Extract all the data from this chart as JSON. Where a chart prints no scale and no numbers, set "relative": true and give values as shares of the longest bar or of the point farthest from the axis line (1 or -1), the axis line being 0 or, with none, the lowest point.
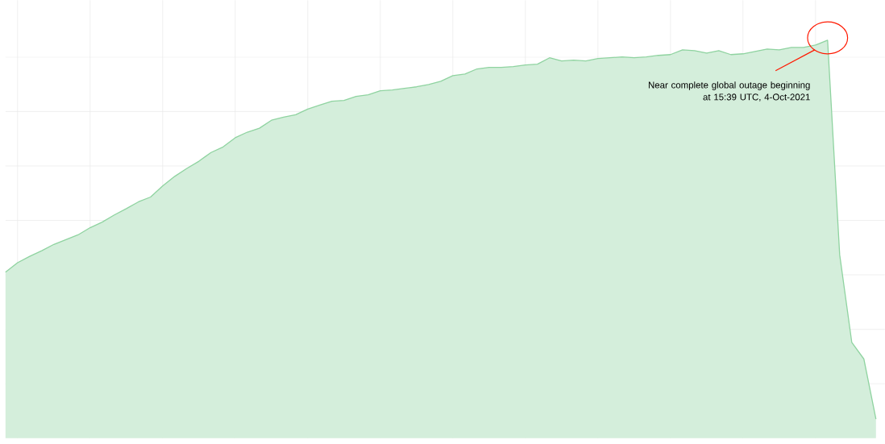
{
  "chart_data": {
    "type": "area",
    "relative": true,
    "grid": true,
    "categories": [
      null,
      null,
      null,
      null,
      null,
      null,
      null,
      null,
      null,
      null,
      null,
      null,
      null,
      null,
      null,
      null,
      null,
      null,
      null,
      null,
      null,
      null,
      null,
      null,
      null,
      null,
      null,
      null,
      null,
      null,
      null,
      null,
      null,
      null,
      null,
      null,
      null,
      null,
      null,
      null,
      null,
      null,
      null,
      null,
      null,
      null,
      null,
      null,
      null,
      null,
      null,
      null,
      null,
      null,
      null,
      null,
      null,
      null,
      null,
      null,
      null,
      null,
      null,
      null,
      null,
      null,
      null,
      null,
      null,
      null,
      null,
      null,
      null
    ],
    "series": [
      {
        "color": "#8fd3a0",
        "values": [
          0.417,
          0.441,
          0.457,
          0.471,
          0.487,
          0.499,
          0.511,
          0.529,
          0.543,
          0.561,
          0.577,
          0.594,
          0.606,
          0.634,
          0.658,
          0.678,
          0.696,
          0.718,
          0.732,
          0.755,
          0.769,
          0.779,
          0.799,
          0.807,
          0.813,
          0.827,
          0.837,
          0.847,
          0.849,
          0.859,
          0.863,
          0.873,
          0.875,
          0.879,
          0.883,
          0.889,
          0.897,
          0.911,
          0.915,
          0.928,
          0.932,
          0.932,
          0.934,
          0.938,
          0.94,
          0.956,
          0.948,
          0.95,
          0.948,
          0.954,
          0.956,
          0.958,
          0.956,
          0.958,
          0.962,
          0.964,
          0.976,
          0.974,
          0.968,
          0.974,
          0.964,
          0.966,
          0.972,
          0.978,
          0.976,
          0.982,
          0.982,
          0.988,
          1,
          0.461,
          0.241,
          0.199,
          0.048
        ]
      }
    ],
    "annotations": [
      "Near complete global outage beginning at 15:39 UTC, 4-Oct-2021"
    ]
  }
}
